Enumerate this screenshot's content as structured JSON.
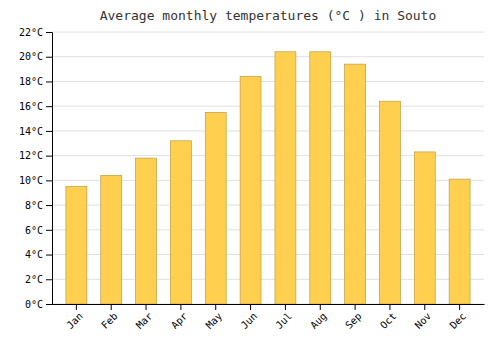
{
  "chart_data": {
    "type": "bar",
    "title": "Average monthly temperatures (°C ) in Souto",
    "categories": [
      "Jan",
      "Feb",
      "Mar",
      "Apr",
      "May",
      "Jun",
      "Jul",
      "Aug",
      "Sep",
      "Oct",
      "Nov",
      "Dec"
    ],
    "values": [
      9.5,
      10.4,
      11.8,
      13.2,
      15.5,
      18.4,
      20.4,
      20.4,
      19.4,
      16.4,
      12.3,
      10.1
    ],
    "color": "#FFD050",
    "ylim": [
      0,
      22
    ],
    "yticks": [
      {
        "value": 0,
        "label": "0°C"
      },
      {
        "value": 2,
        "label": "2°C"
      },
      {
        "value": 4,
        "label": "4°C"
      },
      {
        "value": 6,
        "label": "6°C"
      },
      {
        "value": 8,
        "label": "8°C"
      },
      {
        "value": 10,
        "label": "10°C"
      },
      {
        "value": 12,
        "label": "12°C"
      },
      {
        "value": 14,
        "label": "14°C"
      },
      {
        "value": 16,
        "label": "16°C"
      },
      {
        "value": 18,
        "label": "18°C"
      },
      {
        "value": 20,
        "label": "20°C"
      },
      {
        "value": 22,
        "label": "22°C"
      }
    ],
    "grid": true
  }
}
